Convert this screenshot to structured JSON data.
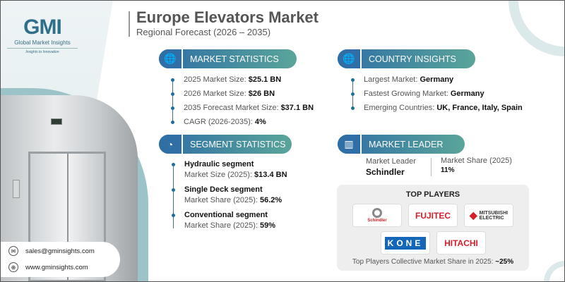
{
  "brand": {
    "logo_mark": "GMI",
    "name": "Global Market Insights",
    "tagline": "Insights to Innovation"
  },
  "header": {
    "title": "Europe Elevators Market",
    "subtitle": "Regional Forecast (2026 – 2035)"
  },
  "market_statistics": {
    "label": "MARKET STATISTICS",
    "items": [
      {
        "k": "2025 Market Size: ",
        "v": "$25.1 BN"
      },
      {
        "k": "2026 Market Size: ",
        "v": "$26 BN"
      },
      {
        "k": "2035 Forecast Market Size: ",
        "v": "$37.1 BN"
      },
      {
        "k": "CAGR (2026-2035): ",
        "v": "4%"
      }
    ]
  },
  "country_insights": {
    "label": "COUNTRY INSIGHTS",
    "items": [
      {
        "k": "Largest Market: ",
        "v": "Germany"
      },
      {
        "k": "Fastest Growing Market: ",
        "v": "Germany"
      },
      {
        "k": "Emerging Countries: ",
        "v": "UK, France, Italy, Spain"
      }
    ]
  },
  "segment_statistics": {
    "label": "SEGMENT STATISTICS",
    "items": [
      {
        "h": "Hydraulic segment",
        "k": "Market Size (2025): ",
        "v": "$13.4 BN"
      },
      {
        "h": "Single Deck segment",
        "k": "Market Share (2025): ",
        "v": "56.2%"
      },
      {
        "h": "Conventional segment",
        "k": "Market Share (2025): ",
        "v": "59%"
      }
    ]
  },
  "market_leader": {
    "label": "MARKET LEADER",
    "leader_label": "Market Leader",
    "leader": "Schindler",
    "share_label": "Market Share (2025)",
    "share": "11%"
  },
  "top_players": {
    "title": "TOP PLAYERS",
    "players": [
      "Schindler",
      "FUJITEC",
      "MITSUBISHI",
      "ELECTRIC",
      "KONE",
      "HITACHI"
    ],
    "footer_label": "Top Players Collective Market Share in 2025: ",
    "footer_value": "~25%"
  },
  "contact": {
    "email": "sales@gminsights.com",
    "website": "www.gminsights.com"
  }
}
